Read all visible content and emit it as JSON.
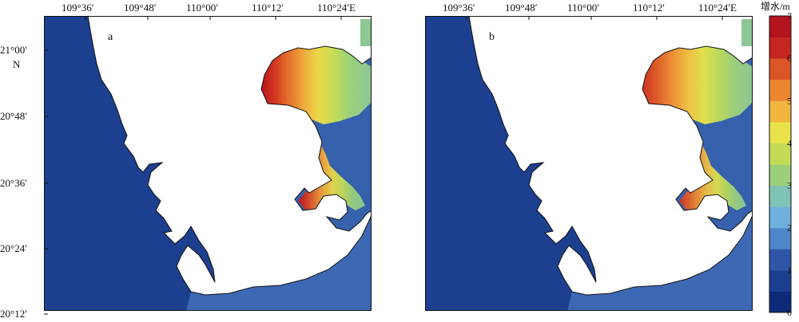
{
  "figure": {
    "lon_ticks": [
      "109°36′",
      "109°48′",
      "110°00′",
      "110°12′",
      "110°24′E"
    ],
    "lat_ticks": [
      "21°00′",
      "20°48′",
      "20°36′",
      "20°24′",
      "20°12′"
    ],
    "lat_hemisphere": "N",
    "panels": [
      {
        "label": "a"
      },
      {
        "label": "b"
      }
    ],
    "colorbar": {
      "title": "增水/m",
      "ticks": [
        "7",
        "6",
        "5",
        "4",
        "3",
        "2",
        "1",
        "0"
      ],
      "min": 0,
      "max": 7,
      "colors": [
        "#0d2a78",
        "#1c3f8f",
        "#2f56a6",
        "#4f86c9",
        "#6fb0df",
        "#7ec3b5",
        "#9ccf7a",
        "#c4dc55",
        "#e8e34c",
        "#f1b540",
        "#e9862f",
        "#dc5526",
        "#c52620",
        "#b4141d"
      ]
    }
  }
}
